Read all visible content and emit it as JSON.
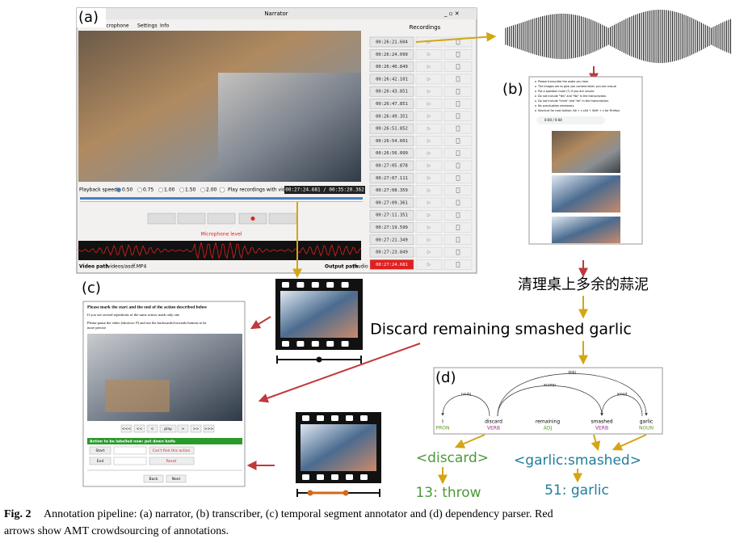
{
  "panel_labels": [
    "(a)",
    "(b)",
    "(c)",
    "(d)"
  ],
  "narrator": {
    "title": "Narrator",
    "menu": [
      "microphone",
      "Settings",
      "Info"
    ],
    "recordings_header": "Recordings",
    "recordings": [
      "00:26:21.604",
      "00:26:24.099",
      "00:26:40.849",
      "00:26:42.101",
      "00:26:43.851",
      "00:26:47.851",
      "00:26:49.351",
      "00:26:51.852",
      "00:26:54.601",
      "00:26:56.099",
      "00:27:05.878",
      "00:27:07.111",
      "00:27:08.359",
      "00:27:09.361",
      "00:27:11.351",
      "00:27:19.599",
      "00:27:21.349",
      "00:27:23.849",
      "00:27:24.681"
    ],
    "playback_speed_label": "Playback speed",
    "speeds": [
      "0.50",
      "0.75",
      "1.00",
      "1.50",
      "2.00"
    ],
    "play_with_video": "Play recordings with video",
    "time": "00:27:24.681 / 00:35:20.362",
    "microphone_level": "Microphone level",
    "video_path_label": "Video path",
    "video_path": "/videos/asdf.MP4",
    "output_path_label": "Output path",
    "output_path": "/audio"
  },
  "transcriber": {
    "instructions": [
      "Please transcribe the audio you hear",
      "The images are to give you context when you are unsure",
      "Put a question mark (?) if you are unsure",
      "Do not include \"Yes\" and \"No\" in the transcription.",
      "Do not include \"hmm\" and \"ee\" in the transcription.",
      "No punctuation necessary.",
      "Shortcut for next button: Alt + n (Alt + Shift + n for Firefox)"
    ],
    "audio_time": "0:00 / 0:04"
  },
  "transcription": "清理桌上多余的蒜泥",
  "translation": "Discard remaining smashed garlic",
  "segment_annotator": {
    "heading": "Please mark the start and the end of the action described below",
    "note": "If you see several repetitions of the same action, mark only one",
    "instruction": [
      "Please pause the video (shortcut: P) and use the backwards/forwards buttons to be",
      "more precise"
    ],
    "controls": [
      "<<<",
      "<<",
      "<",
      "play",
      ">",
      ">>",
      ">>>"
    ],
    "action": "Action to be labelled now: put down knife",
    "start": "Start",
    "cant_find": "Can't find this action",
    "end": "End",
    "reset": "Reset",
    "back": "Back",
    "next": "Next"
  },
  "parser": {
    "words": [
      "I",
      "discard",
      "remaining",
      "smashed",
      "garlic"
    ],
    "tags": [
      "PRON",
      "VERB",
      "ADJ",
      "VERB",
      "NOUN"
    ],
    "arcs": [
      "nsubj",
      "xcomp",
      "amod",
      "dobj"
    ]
  },
  "outputs": {
    "verb": "<discard>",
    "verb_class": "13: throw",
    "noun": "<garlic:smashed>",
    "noun_class": "51: garlic"
  },
  "caption": {
    "label": "Fig. 2",
    "lines": [
      "Annotation pipeline: (a) narrator, (b) transcriber, (c) temporal segment annotator and (d) dependency parser. Red",
      "arrows show AMT crowdsourcing of annotations."
    ]
  }
}
